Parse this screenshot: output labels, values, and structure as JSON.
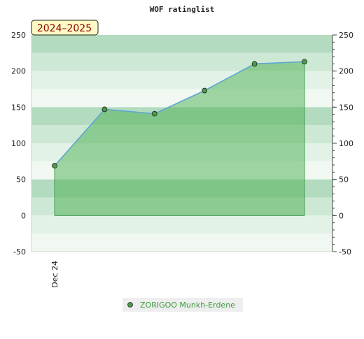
{
  "chart_data": {
    "type": "area",
    "title": "WOF ratinglist",
    "season_label": "2024–2025",
    "xlabel": "",
    "ylabel": "",
    "x_ticks": [
      "Dec 24"
    ],
    "ylim": [
      -50,
      250
    ],
    "y_ticks": [
      -50,
      0,
      50,
      100,
      150,
      200,
      250
    ],
    "series": [
      {
        "name": "ZORIGOO Munkh-Erdene",
        "values": [
          69,
          147,
          141,
          173,
          210,
          213
        ]
      }
    ],
    "legend_position": "bottom-center",
    "grid": true,
    "colors": {
      "line": "#5aa3d6",
      "fill": "#4caf50",
      "marker": "#4a9a4a",
      "band_dark": "#b3dbbf",
      "band_mid": "#cde8d5",
      "band_light": "#e2f2e6",
      "band_lightest": "#f1f8f2",
      "season_bg": "#fff9c4",
      "season_text": "#8b0000"
    }
  }
}
